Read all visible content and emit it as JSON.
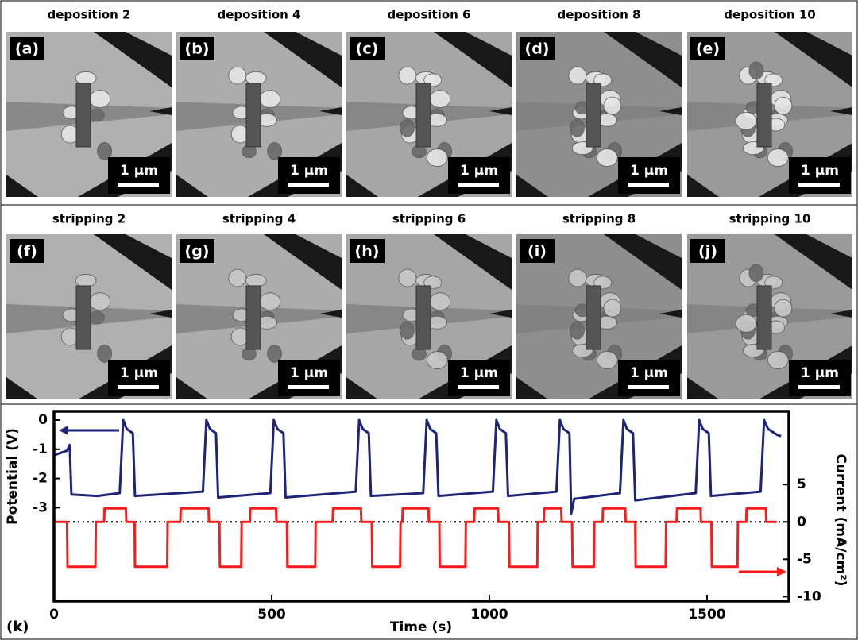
{
  "panels": [
    {
      "title": "deposition 2",
      "label": "(a)",
      "scale_bar": "1 μm"
    },
    {
      "title": "deposition 4",
      "label": "(b)",
      "scale_bar": "1 μm"
    },
    {
      "title": "deposition 6",
      "label": "(c)",
      "scale_bar": "1 μm"
    },
    {
      "title": "deposition 8",
      "label": "(d)",
      "scale_bar": "1 μm"
    },
    {
      "title": "deposition 10",
      "label": "(e)",
      "scale_bar": "1 μm"
    },
    {
      "title": "stripping 2",
      "label": "(f)",
      "scale_bar": "1 μm"
    },
    {
      "title": "stripping 4",
      "label": "(g)",
      "scale_bar": "1 μm"
    },
    {
      "title": "stripping 6",
      "label": "(h)",
      "scale_bar": "1 μm"
    },
    {
      "title": "stripping 8",
      "label": "(i)",
      "scale_bar": "1 μm"
    },
    {
      "title": "stripping 10",
      "label": "(j)",
      "scale_bar": "1 μm"
    }
  ],
  "chart_data": {
    "type": "line",
    "label": "(k)",
    "xlabel": "Time (s)",
    "ylabel": "Potential (V)",
    "y2label": "Current (mA/cm²)",
    "xlim": [
      0,
      1688
    ],
    "xticks": [
      0,
      500,
      1000,
      1500
    ],
    "ylim": [
      -6.2,
      0.3
    ],
    "yticks": [
      0,
      -1,
      -2,
      -3
    ],
    "y2lim": [
      -10.6,
      14.8
    ],
    "y2ticks": [
      5,
      0,
      -5,
      -10
    ],
    "series": [
      {
        "color": "#1c2577",
        "axis": "y",
        "x": [
          0,
          30,
          36,
          40,
          100,
          151,
          159,
          167,
          181,
          186,
          342,
          350,
          358,
          372,
          377,
          497,
          505,
          513,
          527,
          532,
          693,
          701,
          709,
          723,
          728,
          848,
          856,
          864,
          878,
          883,
          1008,
          1016,
          1024,
          1038,
          1043,
          1154,
          1162,
          1170,
          1184,
          1188,
          1195,
          1300,
          1308,
          1316,
          1330,
          1335,
          1474,
          1482,
          1490,
          1504,
          1509,
          1623,
          1631,
          1640,
          1660,
          1670
        ],
        "values": [
          -1.2,
          -1.05,
          -0.85,
          -2.55,
          -2.6,
          -2.5,
          0,
          -0.3,
          -0.45,
          -2.6,
          -2.45,
          0,
          -0.3,
          -0.45,
          -2.65,
          -2.5,
          0,
          -0.3,
          -0.45,
          -2.65,
          -2.45,
          0,
          -0.3,
          -0.45,
          -2.6,
          -2.5,
          0,
          -0.3,
          -0.45,
          -2.6,
          -2.45,
          0,
          -0.3,
          -0.45,
          -2.6,
          -2.45,
          0,
          -0.3,
          -0.45,
          -3.2,
          -2.7,
          -2.5,
          0,
          -0.3,
          -0.45,
          -2.75,
          -2.5,
          0,
          -0.3,
          -0.45,
          -2.6,
          -2.45,
          0,
          -0.3,
          -0.5,
          -0.55
        ]
      },
      {
        "color": "#ff1a1a",
        "axis": "y2",
        "x": [
          0,
          30,
          31,
          95,
          96,
          115,
          116,
          165,
          166,
          185,
          186,
          260,
          261,
          290,
          291,
          355,
          356,
          380,
          381,
          430,
          431,
          450,
          451,
          510,
          511,
          535,
          536,
          600,
          601,
          640,
          641,
          705,
          706,
          730,
          731,
          795,
          796,
          800,
          801,
          860,
          861,
          885,
          886,
          945,
          946,
          965,
          966,
          1020,
          1021,
          1045,
          1046,
          1110,
          1111,
          1125,
          1126,
          1165,
          1166,
          1190,
          1191,
          1240,
          1241,
          1260,
          1261,
          1312,
          1313,
          1335,
          1336,
          1405,
          1406,
          1430,
          1431,
          1485,
          1486,
          1510,
          1511,
          1570,
          1571,
          1590,
          1591,
          1635,
          1636,
          1660
        ],
        "values": [
          0,
          0,
          -6,
          -6,
          0,
          0,
          1.8,
          1.8,
          0,
          0,
          -6,
          -6,
          0,
          0,
          1.8,
          1.8,
          0,
          0,
          -6,
          -6,
          0,
          0,
          1.8,
          1.8,
          0,
          0,
          -6,
          -6,
          0,
          0,
          1.8,
          1.8,
          0,
          0,
          -6,
          -6,
          0,
          0,
          1.8,
          1.8,
          0,
          0,
          -6,
          -6,
          0,
          0,
          1.8,
          1.8,
          0,
          0,
          -6,
          -6,
          0,
          0,
          1.8,
          1.8,
          0,
          0,
          -6,
          -6,
          0,
          0,
          1.8,
          1.8,
          0,
          0,
          -6,
          -6,
          0,
          0,
          1.8,
          1.8,
          0,
          0,
          -6,
          -6,
          0,
          0,
          1.8,
          1.8,
          0,
          0
        ]
      }
    ]
  }
}
